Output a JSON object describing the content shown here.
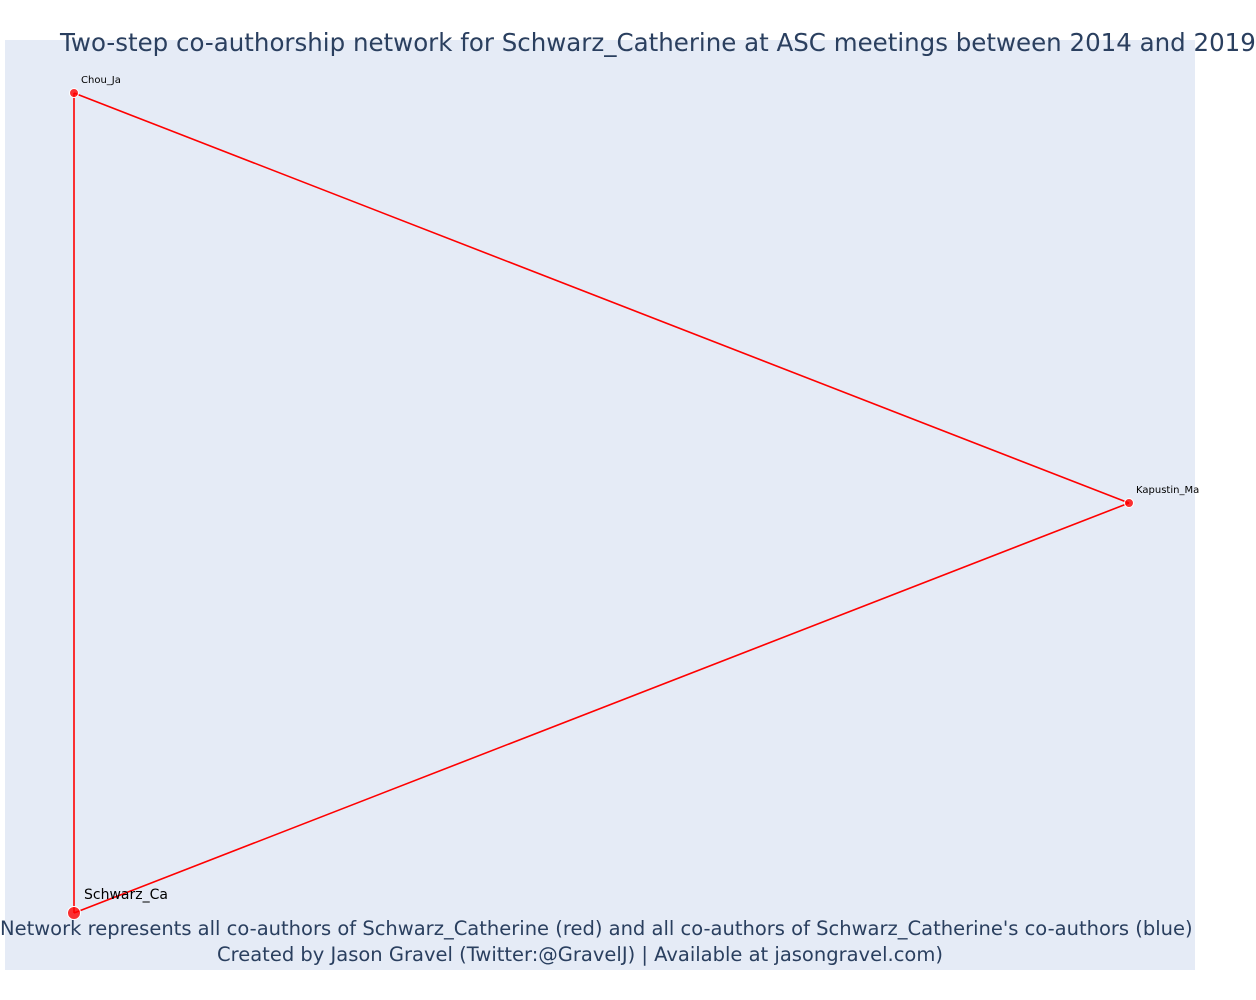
{
  "title": "Two-step co-authorship network for Schwarz_Catherine at ASC meetings between 2014 and 2019",
  "caption": {
    "line1": "Network represents all co-authors of Schwarz_Catherine (red) and all co-authors of Schwarz_Catherine's co-authors (blue)",
    "line2": "Created by Jason Gravel (Twitter:@GravelJ) | Available at jasongravel.com)"
  },
  "colors": {
    "background": "#e5ebf6",
    "coauthor": "#ff0000",
    "second_step": "#0000ff",
    "text": "#2a3f5f"
  },
  "chart_data": {
    "type": "network",
    "grid": false,
    "nodes": [
      {
        "id": "Chou_Ja",
        "label": "Chou_Ja",
        "group": "co-author",
        "x": 0.0,
        "y": 1.0,
        "size": "small"
      },
      {
        "id": "Kapustin_Ma",
        "label": "Kapustin_Ma",
        "group": "co-author",
        "x": 1.0,
        "y": 0.5,
        "size": "small"
      },
      {
        "id": "Schwarz_Ca",
        "label": "Schwarz_Ca",
        "group": "focal",
        "x": 0.0,
        "y": 0.0,
        "size": "large"
      }
    ],
    "edges": [
      {
        "source": "Chou_Ja",
        "target": "Kapustin_Ma"
      },
      {
        "source": "Chou_Ja",
        "target": "Schwarz_Ca"
      },
      {
        "source": "Kapustin_Ma",
        "target": "Schwarz_Ca"
      }
    ]
  }
}
